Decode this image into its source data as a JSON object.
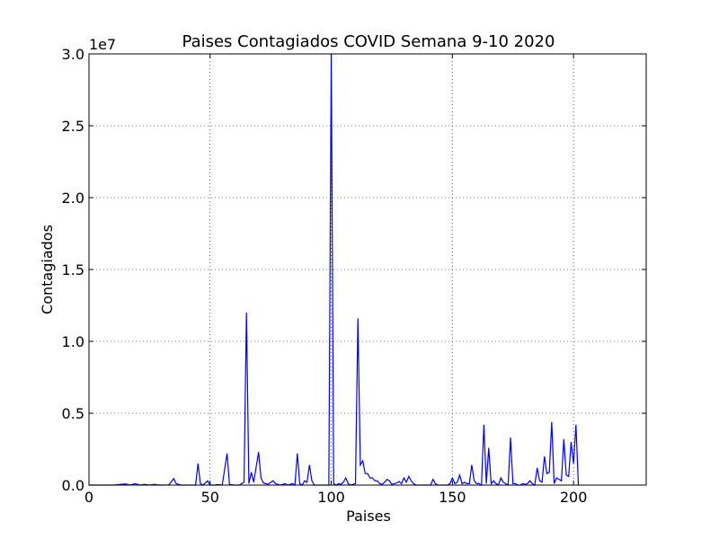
{
  "chart_data": {
    "type": "line",
    "title": "Paises Contagiados COVID Semana 9-10 2020",
    "xlabel": "Paises",
    "ylabel": "Contagiados",
    "y_offset_text": "1e7",
    "xlim": [
      0,
      230
    ],
    "ylim": [
      0,
      30000000
    ],
    "x_ticks": [
      0,
      50,
      100,
      150,
      200
    ],
    "x_tick_labels": [
      "0",
      "50",
      "100",
      "150",
      "200"
    ],
    "y_ticks": [
      0,
      5000000,
      10000000,
      15000000,
      20000000,
      25000000,
      30000000
    ],
    "y_tick_labels": [
      "0.0",
      "0.5",
      "1.0",
      "1.5",
      "2.0",
      "2.5",
      "3.0"
    ],
    "grid": true,
    "line_color": "#0000ff",
    "series": [
      {
        "points": [
          [
            0,
            0
          ],
          [
            5,
            0
          ],
          [
            10,
            0
          ],
          [
            15,
            80000
          ],
          [
            17,
            0
          ],
          [
            19,
            100000
          ],
          [
            21,
            0
          ],
          [
            23,
            50000
          ],
          [
            25,
            0
          ],
          [
            27,
            50000
          ],
          [
            29,
            0
          ],
          [
            31,
            0
          ],
          [
            33,
            20000
          ],
          [
            35,
            450000
          ],
          [
            36,
            100000
          ],
          [
            38,
            0
          ],
          [
            40,
            0
          ],
          [
            42,
            0
          ],
          [
            44,
            0
          ],
          [
            45,
            1500000
          ],
          [
            46,
            100000
          ],
          [
            47,
            0
          ],
          [
            49,
            300000
          ],
          [
            50,
            0
          ],
          [
            52,
            0
          ],
          [
            53,
            40000
          ],
          [
            55,
            0
          ],
          [
            57,
            2200000
          ],
          [
            58,
            50000
          ],
          [
            60,
            0
          ],
          [
            62,
            0
          ],
          [
            64,
            200000
          ],
          [
            65,
            12000000
          ],
          [
            66,
            100000
          ],
          [
            67,
            900000
          ],
          [
            68,
            200000
          ],
          [
            70,
            2300000
          ],
          [
            71,
            500000
          ],
          [
            72,
            150000
          ],
          [
            74,
            50000
          ],
          [
            75,
            200000
          ],
          [
            76,
            300000
          ],
          [
            77,
            100000
          ],
          [
            79,
            0
          ],
          [
            81,
            100000
          ],
          [
            82,
            0
          ],
          [
            84,
            100000
          ],
          [
            85,
            0
          ],
          [
            86,
            2200000
          ],
          [
            87,
            100000
          ],
          [
            88,
            0
          ],
          [
            89,
            300000
          ],
          [
            90,
            200000
          ],
          [
            91,
            1400000
          ],
          [
            92,
            300000
          ],
          [
            93,
            0
          ],
          [
            95,
            0
          ],
          [
            97,
            0
          ],
          [
            99,
            0
          ],
          [
            100,
            30000000
          ],
          [
            101,
            100000
          ],
          [
            102,
            0
          ],
          [
            103,
            100000
          ],
          [
            104,
            50000
          ],
          [
            105,
            200000
          ],
          [
            106,
            500000
          ],
          [
            107,
            100000
          ],
          [
            108,
            0
          ],
          [
            110,
            100000
          ],
          [
            111,
            11600000
          ],
          [
            112,
            1400000
          ],
          [
            113,
            1700000
          ],
          [
            114,
            800000
          ],
          [
            115,
            800000
          ],
          [
            116,
            500000
          ],
          [
            117,
            500000
          ],
          [
            118,
            300000
          ],
          [
            119,
            300000
          ],
          [
            120,
            100000
          ],
          [
            121,
            50000
          ],
          [
            122,
            200000
          ],
          [
            123,
            400000
          ],
          [
            124,
            300000
          ],
          [
            125,
            50000
          ],
          [
            126,
            100000
          ],
          [
            127,
            150000
          ],
          [
            128,
            250000
          ],
          [
            129,
            100000
          ],
          [
            130,
            500000
          ],
          [
            131,
            200000
          ],
          [
            132,
            600000
          ],
          [
            133,
            300000
          ],
          [
            134,
            100000
          ],
          [
            135,
            0
          ],
          [
            137,
            0
          ],
          [
            139,
            0
          ],
          [
            141,
            0
          ],
          [
            142,
            400000
          ],
          [
            143,
            100000
          ],
          [
            144,
            0
          ],
          [
            146,
            0
          ],
          [
            148,
            0
          ],
          [
            149,
            100000
          ],
          [
            150,
            500000
          ],
          [
            151,
            100000
          ],
          [
            152,
            200000
          ],
          [
            153,
            700000
          ],
          [
            154,
            100000
          ],
          [
            155,
            200000
          ],
          [
            156,
            100000
          ],
          [
            157,
            100000
          ],
          [
            158,
            1400000
          ],
          [
            159,
            300000
          ],
          [
            160,
            100000
          ],
          [
            161,
            100000
          ],
          [
            162,
            0
          ],
          [
            163,
            4200000
          ],
          [
            164,
            100000
          ],
          [
            165,
            2600000
          ],
          [
            166,
            100000
          ],
          [
            167,
            300000
          ],
          [
            168,
            100000
          ],
          [
            169,
            0
          ],
          [
            170,
            500000
          ],
          [
            171,
            200000
          ],
          [
            172,
            100000
          ],
          [
            173,
            0
          ],
          [
            174,
            3300000
          ],
          [
            175,
            100000
          ],
          [
            176,
            100000
          ],
          [
            177,
            0
          ],
          [
            178,
            0
          ],
          [
            179,
            100000
          ],
          [
            180,
            50000
          ],
          [
            181,
            100000
          ],
          [
            182,
            300000
          ],
          [
            183,
            100000
          ],
          [
            184,
            0
          ],
          [
            185,
            1200000
          ],
          [
            186,
            300000
          ],
          [
            187,
            200000
          ],
          [
            188,
            2000000
          ],
          [
            189,
            800000
          ],
          [
            190,
            900000
          ],
          [
            191,
            4400000
          ],
          [
            192,
            100000
          ],
          [
            193,
            500000
          ],
          [
            194,
            400000
          ],
          [
            195,
            300000
          ],
          [
            196,
            3200000
          ],
          [
            197,
            700000
          ],
          [
            198,
            600000
          ],
          [
            199,
            3000000
          ],
          [
            200,
            1500000
          ],
          [
            201,
            4200000
          ],
          [
            202,
            0
          ]
        ]
      }
    ]
  }
}
